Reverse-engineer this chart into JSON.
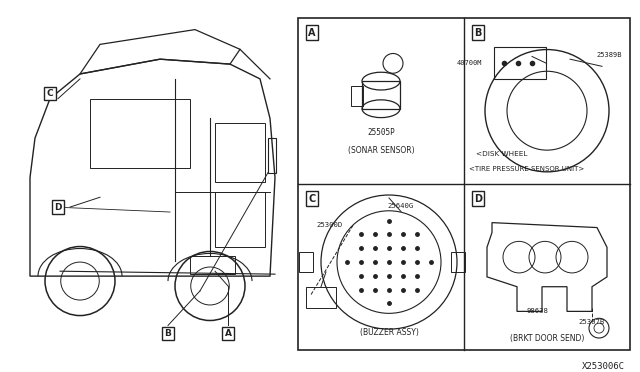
{
  "bg_color": "#ffffff",
  "border_color": "#222222",
  "text_color": "#222222",
  "diagram_ref": "X253006C",
  "panel_A_part": "25505P",
  "panel_A_desc": "(SONAR SENSOR)",
  "panel_B_parts": [
    "40700M",
    "25389B"
  ],
  "panel_B_desc1": "<DISK WHEEL",
  "panel_B_desc2": "<TIRE PRESSURE SENSOR UNIT>",
  "panel_C_parts": [
    "25300D",
    "25640G"
  ],
  "panel_C_desc": "(BUZZER ASSY)",
  "panel_D_parts": [
    "98638",
    "25307B"
  ],
  "panel_D_desc": "(BRKT DOOR SEND)"
}
